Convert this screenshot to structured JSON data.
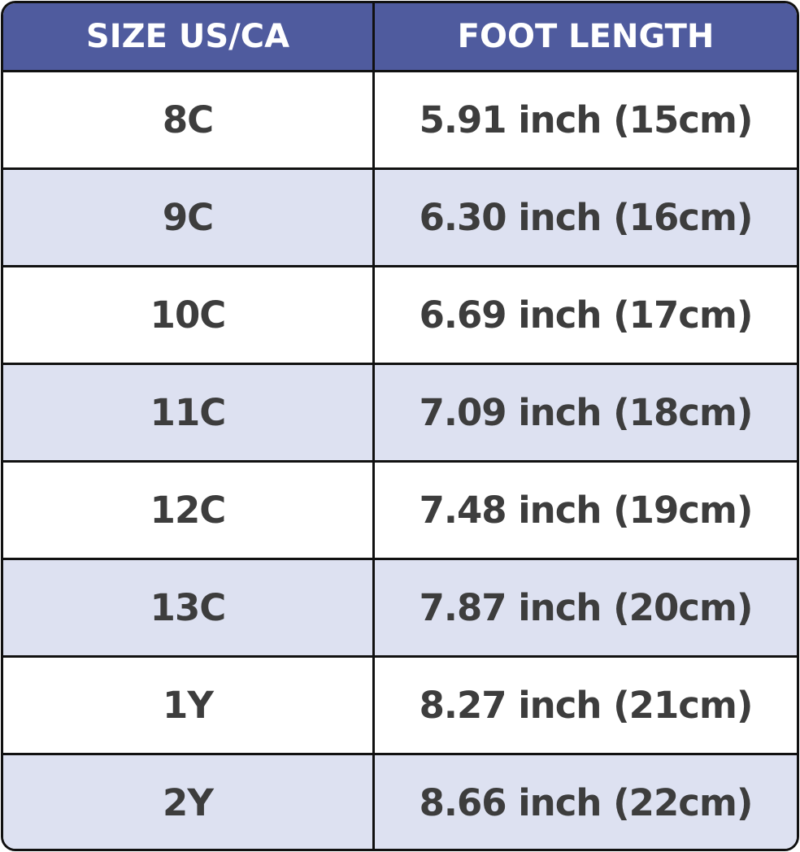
{
  "header": {
    "size": "SIZE US/CA",
    "foot_length": "FOOT LENGTH"
  },
  "rows": [
    {
      "size": "8C",
      "length": "5.91 inch (15cm)"
    },
    {
      "size": "9C",
      "length": "6.30 inch (16cm)"
    },
    {
      "size": "10C",
      "length": "6.69 inch (17cm)"
    },
    {
      "size": "11C",
      "length": "7.09 inch (18cm)"
    },
    {
      "size": "12C",
      "length": "7.48 inch (19cm)"
    },
    {
      "size": "13C",
      "length": "7.87 inch (20cm)"
    },
    {
      "size": "1Y",
      "length": "8.27 inch (21cm)"
    },
    {
      "size": "2Y",
      "length": "8.66 inch (22cm)"
    }
  ],
  "colors": {
    "header": "#4f5b9e",
    "alt_row": "#dde1f1",
    "text": "#3d3d3d"
  }
}
